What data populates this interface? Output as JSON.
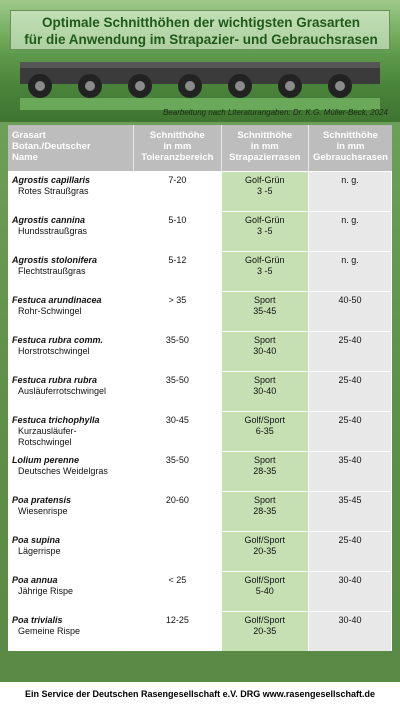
{
  "header": {
    "title_line1": "Optimale Schnitthöhen der wichtigsten Grasarten",
    "title_line2": "für die Anwendung im Strapazier- und Gebrauchsrasen",
    "credit": "Bearbeitung nach Literaturangaben: Dr. K.G. Müller-Beck, 2024"
  },
  "columns": {
    "name": "Grasart\nBotan./Deutscher\nName",
    "tol": "Schnitthöhe\nin mm\nToleranzbereich",
    "str": "Schnitthöhe\nin mm\nStrapazierrasen",
    "geb": "Schnitthöhe\nin mm\nGebrauchsrasen"
  },
  "rows": [
    {
      "bot": "Agrostis capillaris",
      "deu": "Rotes Straußgras",
      "tol": "7-20",
      "str": "Golf-Grün\n3 -5",
      "geb": "n. g."
    },
    {
      "bot": "Agrostis cannina",
      "deu": "Hundsstraußgras",
      "tol": "5-10",
      "str": "Golf-Grün\n3 -5",
      "geb": "n. g."
    },
    {
      "bot": "Agrostis stolonifera",
      "deu": "Flechtstraußgras",
      "tol": "5-12",
      "str": "Golf-Grün\n3 -5",
      "geb": "n. g."
    },
    {
      "bot": "Festuca arundinacea",
      "deu": "Rohr-Schwingel",
      "tol": "> 35",
      "str": "Sport\n35-45",
      "geb": "40-50"
    },
    {
      "bot": "Festuca rubra comm.",
      "deu": "Horstrotschwingel",
      "tol": "35-50",
      "str": "Sport\n30-40",
      "geb": "25-40"
    },
    {
      "bot": "Festuca rubra rubra",
      "deu": "Ausläuferrotschwingel",
      "tol": "35-50",
      "str": "Sport\n30-40",
      "geb": "25-40"
    },
    {
      "bot": "Festuca trichophylla",
      "deu": "Kurzausläufer-\nRotschwingel",
      "tol": "30-45",
      "str": "Golf/Sport\n6-35",
      "geb": "25-40"
    },
    {
      "bot": "Lolium perenne",
      "deu": "Deutsches Weidelgras",
      "tol": "35-50",
      "str": "Sport\n28-35",
      "geb": "35-40"
    },
    {
      "bot": "Poa pratensis",
      "deu": "Wiesenrispe",
      "tol": "20-60",
      "str": "Sport\n28-35",
      "geb": "35-45"
    },
    {
      "bot": "Poa supina",
      "deu": "Lägerrispe",
      "tol": "",
      "str": "Golf/Sport\n20-35",
      "geb": "25-40"
    },
    {
      "bot": "Poa annua",
      "deu": "Jährige Rispe",
      "tol": "< 25",
      "str": "Golf/Sport\n5-40",
      "geb": "30-40"
    },
    {
      "bot": "Poa trivialis",
      "deu": "Gemeine Rispe",
      "tol": "12-25",
      "str": "Golf/Sport\n20-35",
      "geb": "30-40"
    }
  ],
  "footer": "Ein Service der Deutschen Rasengesellschaft e.V. DRG  www.rasengesellschaft.de"
}
